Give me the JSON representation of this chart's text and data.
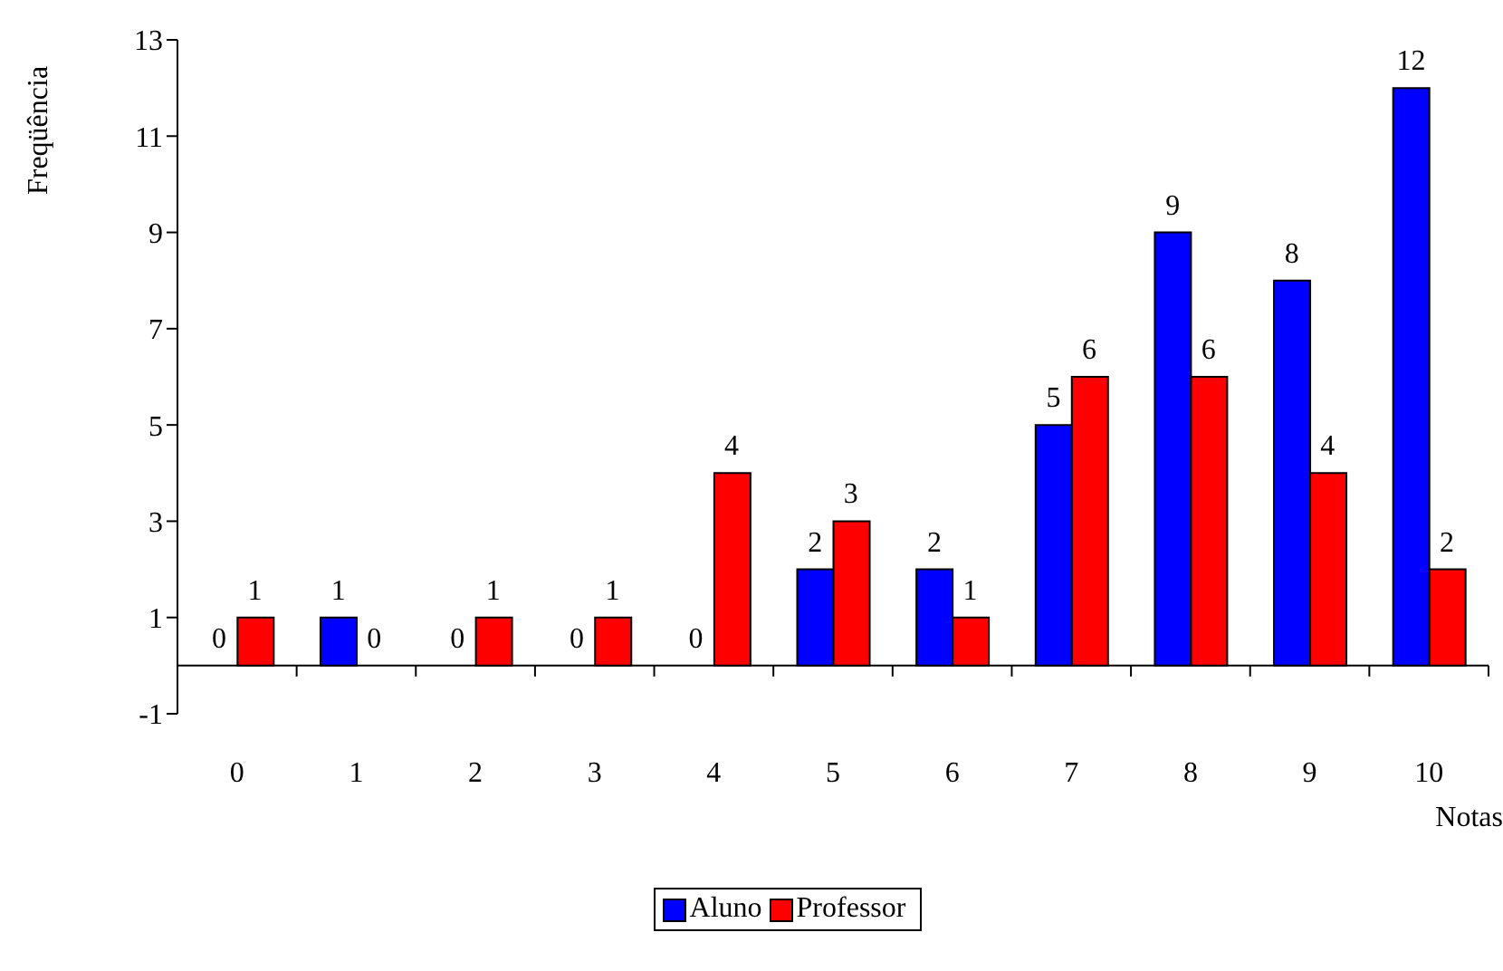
{
  "chart_data": {
    "type": "bar",
    "xlabel": "Notas",
    "ylabel": "Freqüência",
    "categories": [
      "0",
      "1",
      "2",
      "3",
      "4",
      "5",
      "6",
      "7",
      "8",
      "9",
      "10"
    ],
    "series": [
      {
        "name": "Aluno",
        "color": "#0000ff",
        "values": [
          0,
          1,
          0,
          0,
          0,
          2,
          2,
          5,
          9,
          8,
          12
        ]
      },
      {
        "name": "Professor",
        "color": "#ff0000",
        "values": [
          1,
          0,
          1,
          1,
          4,
          3,
          1,
          6,
          6,
          4,
          2
        ]
      }
    ],
    "ylim": [
      -1,
      13
    ],
    "yticks": [
      -1,
      1,
      3,
      5,
      7,
      9,
      11,
      13
    ],
    "data_labels": true,
    "grid": false,
    "legend": "bottom"
  }
}
